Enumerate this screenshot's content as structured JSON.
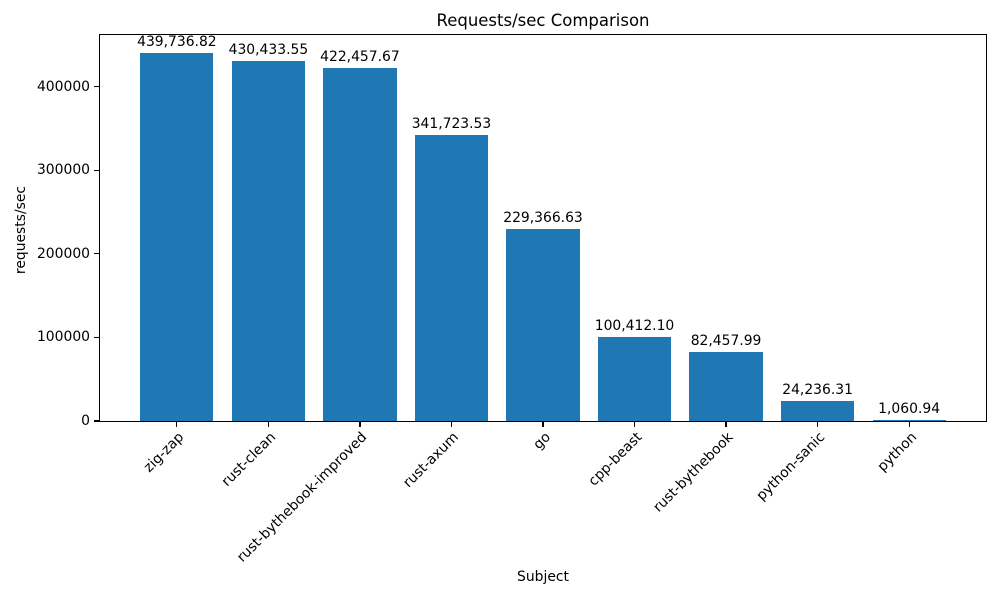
{
  "chart_data": {
    "type": "bar",
    "title": "Requests/sec Comparison",
    "xlabel": "Subject",
    "ylabel": "requests/sec",
    "categories": [
      "zig-zap",
      "rust-clean",
      "rust-bythebook-improved",
      "rust-axum",
      "go",
      "cpp-beast",
      "rust-bythebook",
      "python-sanic",
      "python"
    ],
    "values": [
      439736.82,
      430433.55,
      422457.67,
      341723.53,
      229366.63,
      100412.1,
      82457.99,
      24236.31,
      1060.94
    ],
    "bar_labels": [
      "439,736.82",
      "430,433.55",
      "422,457.67",
      "341,723.53",
      "229,366.63",
      "100,412.10",
      "82,457.99",
      "24,236.31",
      "1,060.94"
    ],
    "yticks": [
      0,
      100000,
      200000,
      300000,
      400000
    ],
    "ytick_labels": [
      "0",
      "100000",
      "200000",
      "300000",
      "400000"
    ],
    "ylim": [
      0,
      461724
    ],
    "bar_color": "#1f77b4",
    "grid": false,
    "legend": null
  }
}
